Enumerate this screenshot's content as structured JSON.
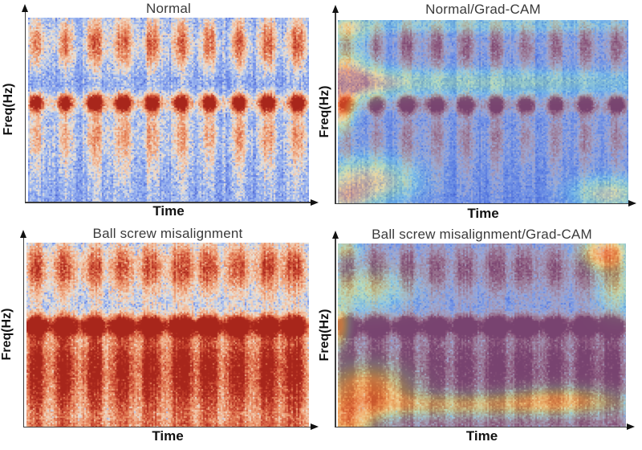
{
  "chart_data": [
    {
      "panel": "top-left",
      "type": "heatmap",
      "subtype": "vibration-spectrogram",
      "title": "Normal",
      "xlabel": "Time",
      "ylabel": "Freq(Hz)",
      "colormap": "coolwarm",
      "axes": {
        "x_ticks": [],
        "y_ticks": [],
        "arrow_ends": true
      },
      "content_summary": "About 10 periodic vertical pulse bands on a light-blue noisy background; each pulse has a red tip near the top frequencies and a strongest dark-red spot at mid frequency; energy fades toward the bottom.",
      "render": {
        "seed": 7,
        "bands": 10,
        "band_start": 0.03,
        "band_step": 0.103,
        "core_sigma": 0.016,
        "halo_sigma": 0.034,
        "base": 0.35,
        "profile": [
          [
            0.14,
            0.11,
            0.66
          ],
          [
            0.46,
            0.035,
            1.12
          ],
          [
            0.62,
            0.1,
            0.4
          ],
          [
            0.82,
            0.16,
            0.22
          ]
        ],
        "washes": [],
        "gradcam": null
      }
    },
    {
      "panel": "top-right",
      "type": "heatmap",
      "subtype": "vibration-spectrogram-with-gradcam",
      "title": "Normal/Grad-CAM",
      "xlabel": "Time",
      "ylabel": "Freq(Hz)",
      "colormap": "coolwarm base + jet Grad-CAM overlay",
      "axes": {
        "x_ticks": [],
        "y_ticks": [],
        "arrow_ends": true
      },
      "content_summary": "Same Normal spectrogram with semi-transparent Grad-CAM attention: strong orange hotspot on the left edge at mid frequency, yellow upper-left region, pale yellow horizontal stripe across upper-middle frequencies, yellow blobs at bottom-left and bottom-right; remainder tinted blue-purple (low attention).",
      "render": {
        "seed": 7,
        "bands": 10,
        "band_start": 0.03,
        "band_step": 0.103,
        "core_sigma": 0.016,
        "halo_sigma": 0.034,
        "base": 0.35,
        "profile": [
          [
            0.14,
            0.11,
            0.66
          ],
          [
            0.46,
            0.035,
            1.12
          ],
          [
            0.62,
            0.1,
            0.4
          ],
          [
            0.82,
            0.16,
            0.22
          ]
        ],
        "washes": [],
        "gradcam": {
          "base": 0.22,
          "alpha": 0.45,
          "blobs": [
            [
              0.005,
              0.46,
              0.03,
              0.085,
              0.78
            ],
            [
              0.03,
              0.3,
              0.05,
              0.09,
              0.55
            ],
            [
              0.1,
              0.34,
              0.08,
              0.055,
              0.38
            ],
            [
              0.5,
              0.34,
              0.45,
              0.045,
              0.3
            ],
            [
              0.04,
              0.05,
              0.05,
              0.05,
              0.35
            ],
            [
              0.5,
              0.02,
              0.5,
              0.035,
              0.18
            ],
            [
              0.1,
              0.88,
              0.1,
              0.08,
              0.55
            ],
            [
              0.03,
              0.97,
              0.05,
              0.05,
              0.45
            ],
            [
              0.93,
              0.95,
              0.08,
              0.06,
              0.42
            ]
          ]
        }
      }
    },
    {
      "panel": "bottom-left",
      "type": "heatmap",
      "subtype": "vibration-spectrogram",
      "title": "Ball screw misalignment",
      "xlabel": "Time",
      "ylabel": "Freq(Hz)",
      "colormap": "coolwarm",
      "axes": {
        "x_ticks": [],
        "y_ticks": [],
        "arrow_ends": true
      },
      "content_summary": "About 10 periodic pulse bands that are wider and extend over the full frequency range; dark-red spots at mid frequency; noticeably more red/orange energy in the lower frequencies than the Normal case.",
      "render": {
        "seed": 21,
        "bands": 10,
        "band_start": 0.035,
        "band_step": 0.102,
        "core_sigma": 0.02,
        "halo_sigma": 0.045,
        "base": 0.35,
        "profile": [
          [
            0.13,
            0.11,
            0.7
          ],
          [
            0.45,
            0.035,
            1.15
          ],
          [
            0.6,
            0.14,
            0.5
          ],
          [
            0.85,
            0.18,
            0.5
          ]
        ],
        "washes": [
          [
            0.75,
            0.3,
            0.15
          ],
          [
            0.985,
            0.02,
            0.1
          ]
        ],
        "gradcam": null
      }
    },
    {
      "panel": "bottom-right",
      "type": "heatmap",
      "subtype": "vibration-spectrogram-with-gradcam",
      "title": "Ball screw misalignment/Grad-CAM",
      "xlabel": "Time",
      "ylabel": "Freq(Hz)",
      "colormap": "coolwarm base + jet Grad-CAM overlay",
      "axes": {
        "x_ticks": [],
        "y_ticks": [],
        "arrow_ends": true
      },
      "content_summary": "Same misalignment spectrogram with Grad-CAM attention: yellow-orange hotspots at bottom-left and along a horizontal band near the bottom, cyan region upper-left, orange hotspot in the top-right corner, cyan on the upper-right edge; remainder tinted blue-purple.",
      "render": {
        "seed": 21,
        "bands": 10,
        "band_start": 0.035,
        "band_step": 0.102,
        "core_sigma": 0.02,
        "halo_sigma": 0.045,
        "base": 0.35,
        "profile": [
          [
            0.13,
            0.11,
            0.7
          ],
          [
            0.45,
            0.035,
            1.15
          ],
          [
            0.6,
            0.14,
            0.5
          ],
          [
            0.85,
            0.18,
            0.5
          ]
        ],
        "washes": [
          [
            0.75,
            0.3,
            0.15
          ],
          [
            0.985,
            0.02,
            0.1
          ]
        ],
        "gradcam": {
          "base": 0.22,
          "alpha": 0.45,
          "blobs": [
            [
              0.08,
              0.25,
              0.11,
              0.08,
              0.3
            ],
            [
              0.005,
              0.45,
              0.022,
              0.08,
              0.45
            ],
            [
              0.1,
              0.8,
              0.1,
              0.09,
              0.55
            ],
            [
              0.03,
              0.97,
              0.06,
              0.06,
              0.55
            ],
            [
              0.45,
              0.88,
              0.35,
              0.045,
              0.35
            ],
            [
              0.78,
              0.85,
              0.12,
              0.05,
              0.3
            ],
            [
              0.93,
              0.05,
              0.05,
              0.06,
              0.72
            ],
            [
              0.975,
              0.25,
              0.05,
              0.09,
              0.3
            ],
            [
              0.02,
              0.03,
              0.04,
              0.04,
              0.28
            ]
          ]
        }
      }
    }
  ],
  "style": {
    "spectrogram_low_color": "#3342b4",
    "spectrogram_mid_color": "#e8e2d8",
    "spectrogram_high_color": "#9e1610",
    "axis_color": "#3c3c3c",
    "title_color": "#3a3a3a"
  }
}
